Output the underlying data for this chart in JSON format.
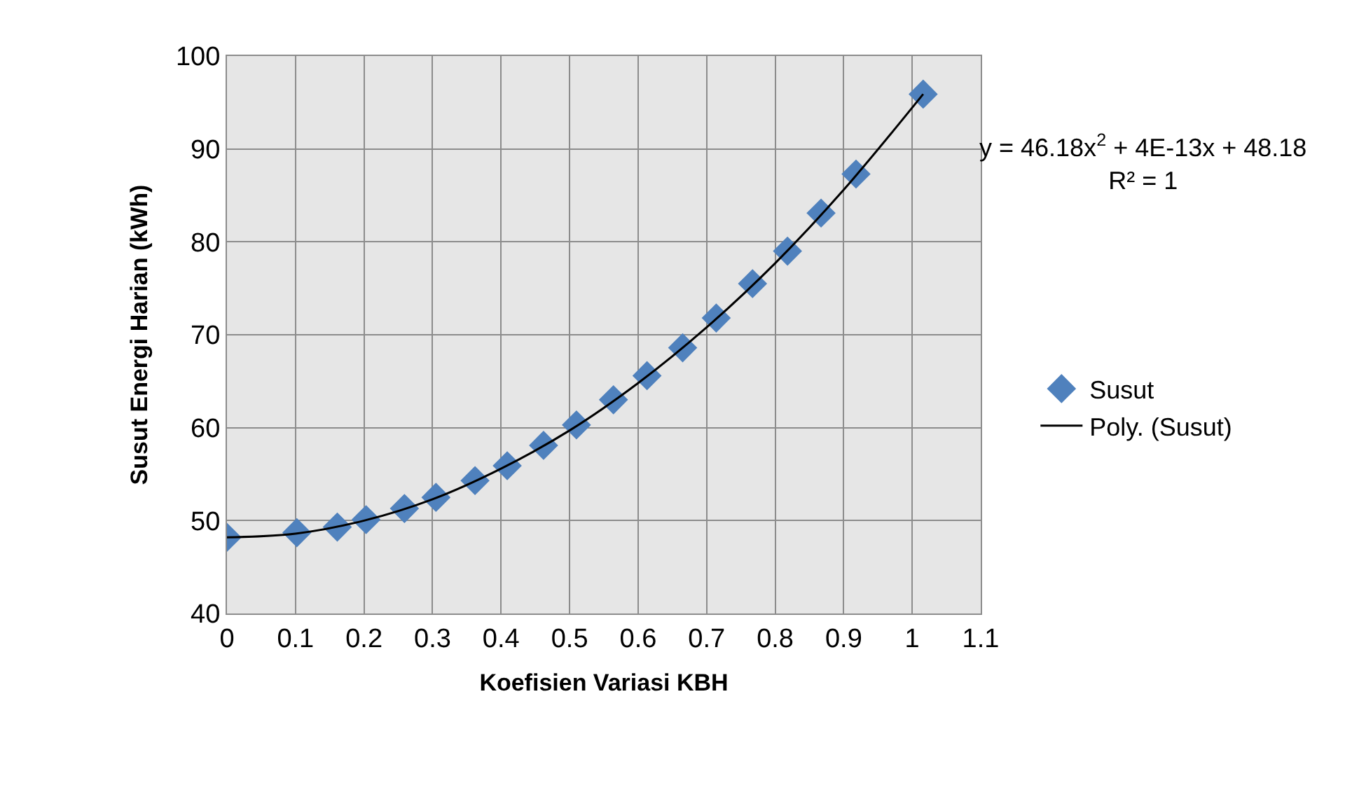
{
  "chart_data": {
    "type": "scatter",
    "xlabel": "Koefisien Variasi KBH",
    "ylabel": "Susut Energi Harian (kWh)",
    "xlim": [
      0,
      1.1
    ],
    "xticks": [
      0,
      0.1,
      0.2,
      0.3,
      0.4,
      0.5,
      0.6,
      0.7,
      0.8,
      0.9,
      1,
      1.1
    ],
    "ylim": [
      40,
      100
    ],
    "yticks": [
      40,
      50,
      60,
      70,
      80,
      90,
      100
    ],
    "grid": true,
    "legend": "right",
    "marker": "diamond",
    "annotations": [
      "y = 46.18x$^{2}$ + 4E-13x + 48.18\nR² = 1"
    ],
    "series": [
      {
        "name": "Susut",
        "type": "scatter",
        "color": "#4f81bd",
        "x": [
          0,
          0.102,
          0.161,
          0.203,
          0.259,
          0.305,
          0.362,
          0.409,
          0.462,
          0.51,
          0.564,
          0.613,
          0.665,
          0.714,
          0.767,
          0.818,
          0.867,
          0.918,
          1.016
        ],
        "values": [
          48.2,
          48.7,
          49.3,
          50.1,
          51.3,
          52.5,
          54.3,
          55.9,
          58.1,
          60.3,
          63.0,
          65.6,
          68.6,
          71.8,
          75.5,
          79.0,
          83.1,
          87.3,
          95.9
        ]
      },
      {
        "name": "Poly. (Susut)",
        "type": "line",
        "color": "#000000",
        "line_style": "solid",
        "marker": "none",
        "x": [
          0,
          0.1,
          0.2,
          0.3,
          0.4,
          0.5,
          0.6,
          0.7,
          0.8,
          0.9,
          1.016
        ],
        "values": [
          48.2,
          48.6,
          50.0,
          52.3,
          55.6,
          59.7,
          64.8,
          70.8,
          77.7,
          85.6,
          95.9
        ]
      }
    ]
  }
}
